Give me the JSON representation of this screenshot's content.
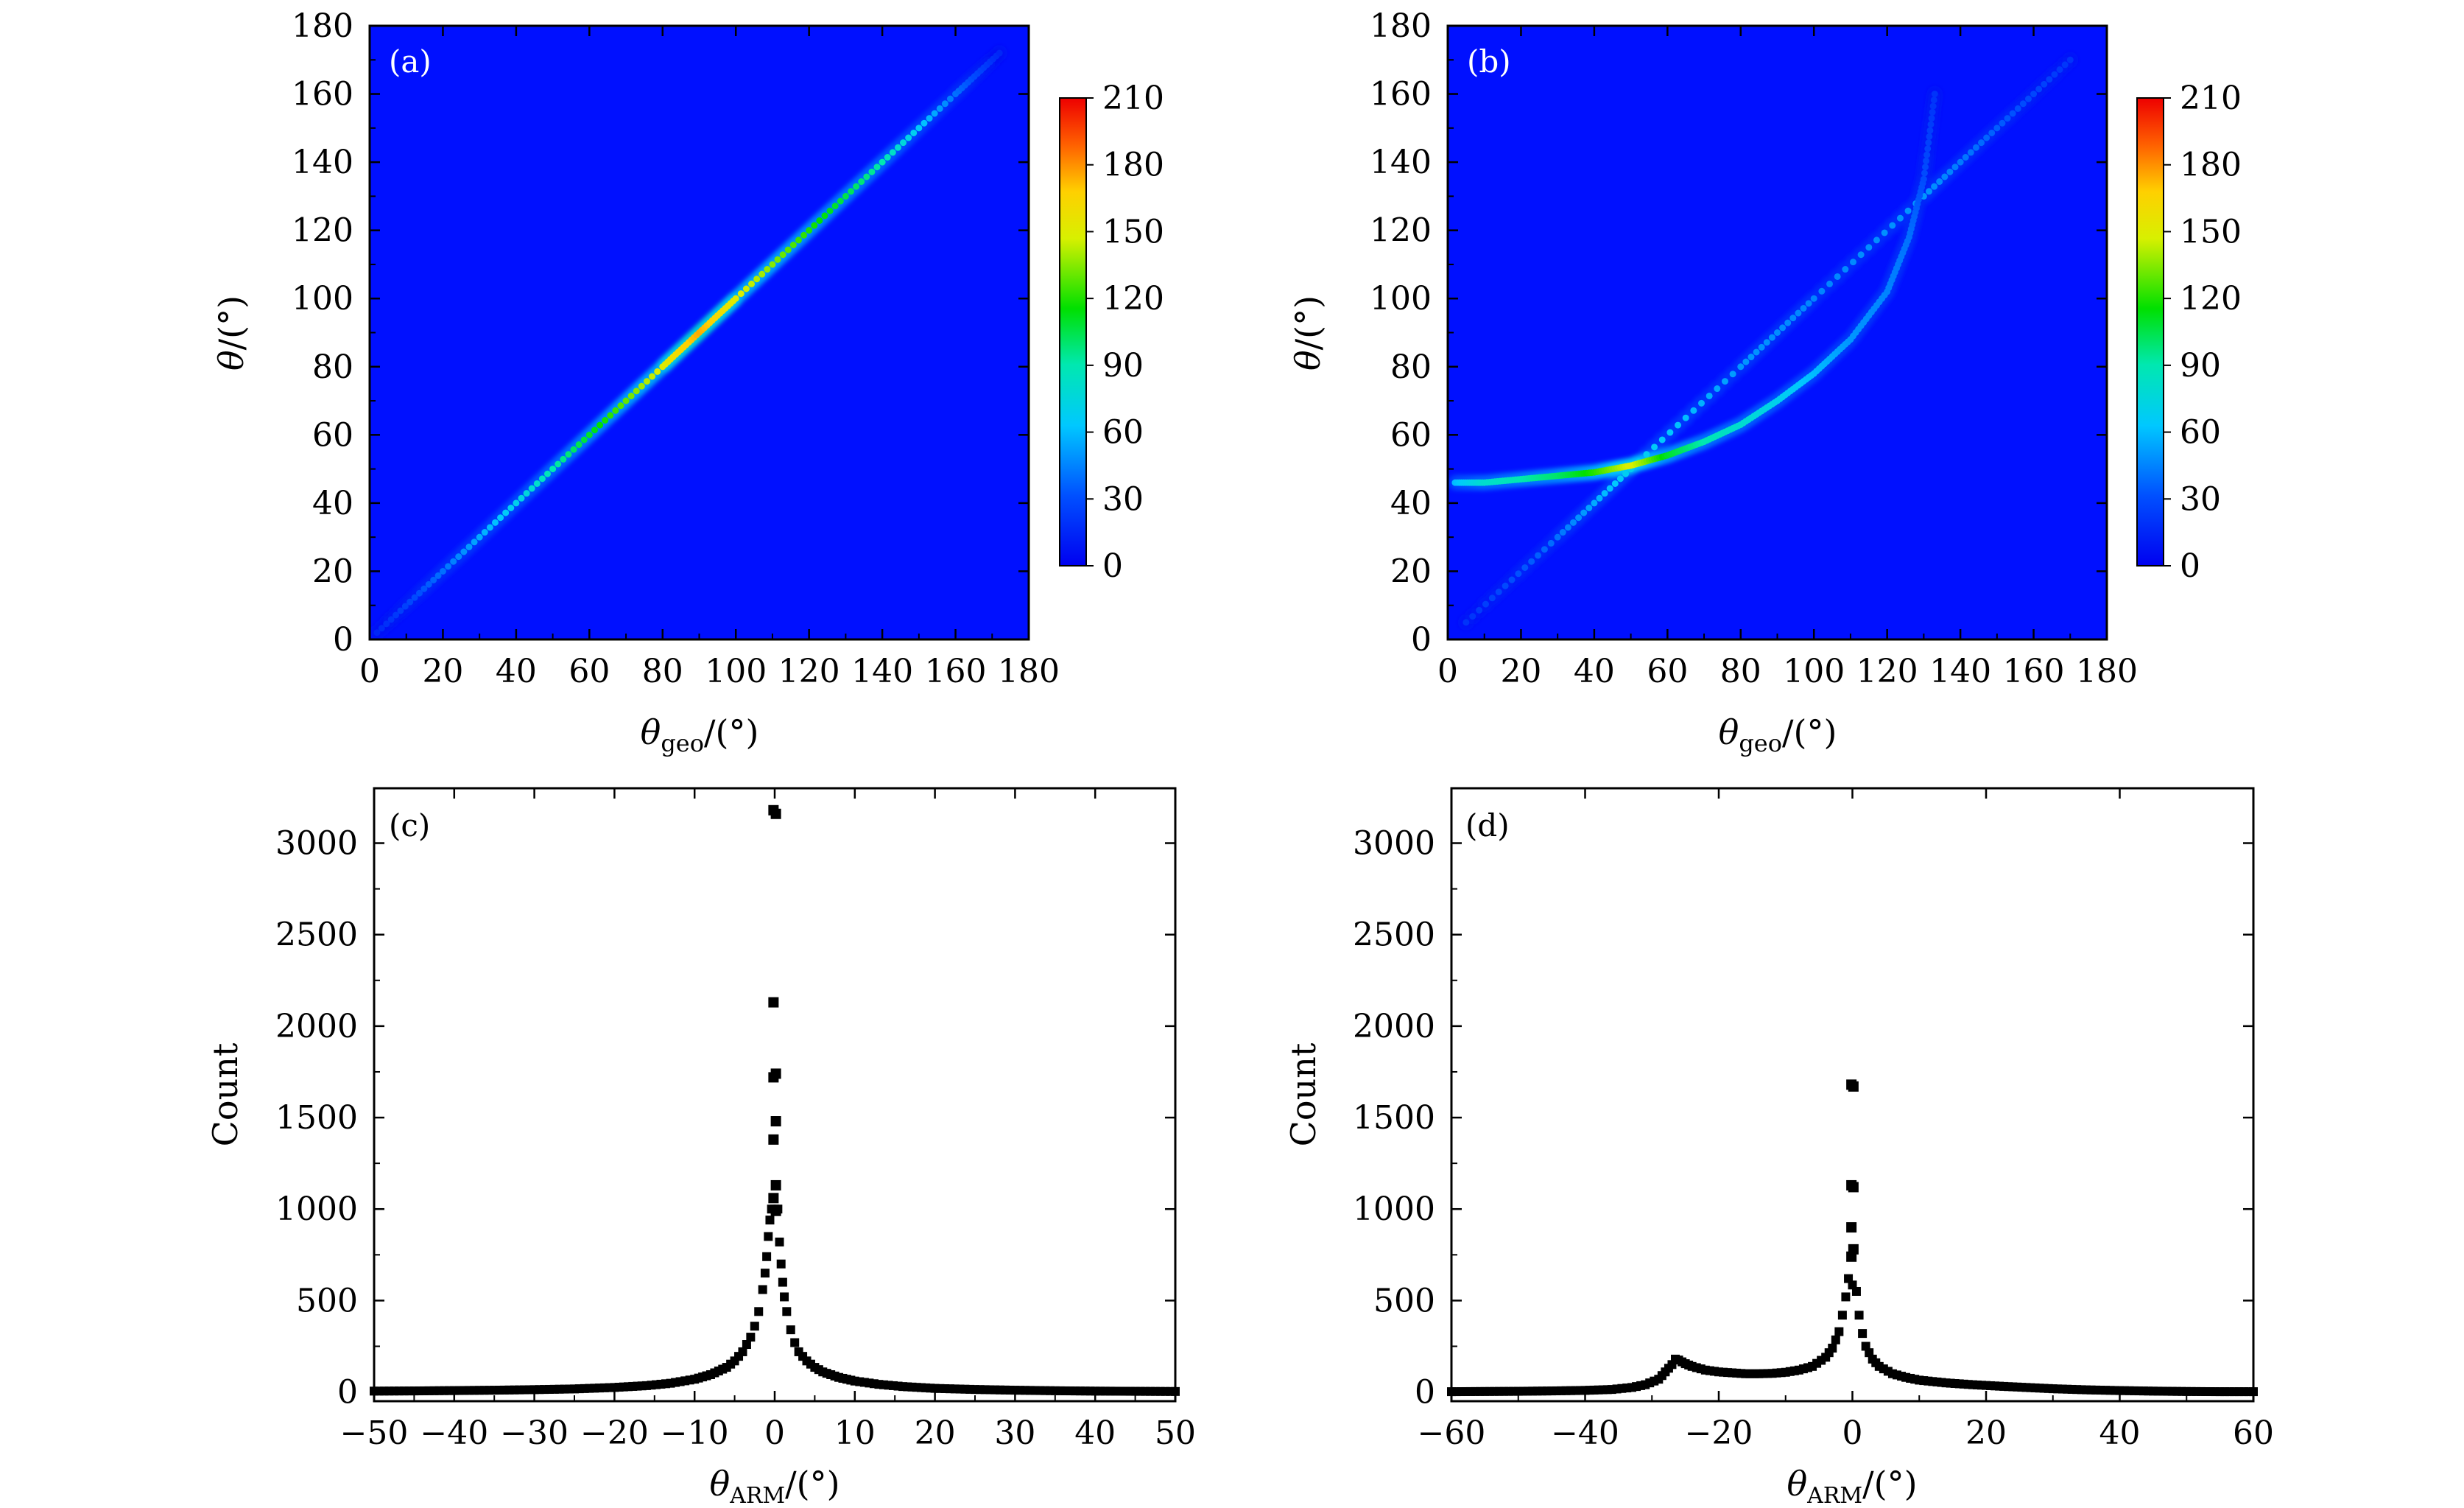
{
  "chart_data": [
    {
      "panel": "(a)",
      "type": "heatmap",
      "xlabel": "θgeo/(°)",
      "ylabel": "θ/(°)",
      "xlim": [
        0,
        180
      ],
      "ylim": [
        0,
        180
      ],
      "xticks": [
        0,
        20,
        40,
        60,
        80,
        100,
        120,
        140,
        160,
        180
      ],
      "yticks": [
        0,
        20,
        40,
        60,
        80,
        100,
        120,
        140,
        160,
        180
      ],
      "colorbar": {
        "min": 0,
        "max": 210,
        "ticks": [
          0,
          30,
          60,
          90,
          120,
          150,
          180,
          210
        ]
      },
      "features": [
        {
          "name": "diagonal",
          "points": [
            [
              2,
              2
            ],
            [
              20,
              20
            ],
            [
              40,
              40
            ],
            [
              60,
              60
            ],
            [
              80,
              80
            ],
            [
              90,
              90
            ],
            [
              100,
              100
            ],
            [
              120,
              120
            ],
            [
              140,
              140
            ],
            [
              160,
              160
            ],
            [
              172,
              172
            ]
          ],
          "intensity": [
            15,
            40,
            70,
            110,
            150,
            175,
            150,
            120,
            90,
            40,
            15
          ]
        }
      ]
    },
    {
      "panel": "(b)",
      "type": "heatmap",
      "xlabel": "θgeo/(°)",
      "ylabel": "θ/(°)",
      "xlim": [
        0,
        180
      ],
      "ylim": [
        0,
        180
      ],
      "xticks": [
        0,
        20,
        40,
        60,
        80,
        100,
        120,
        140,
        160,
        180
      ],
      "yticks": [
        0,
        20,
        40,
        60,
        80,
        100,
        120,
        140,
        160,
        180
      ],
      "colorbar": {
        "min": 0,
        "max": 210,
        "ticks": [
          0,
          30,
          60,
          90,
          120,
          150,
          180,
          210
        ]
      },
      "features": [
        {
          "name": "diagonal",
          "points": [
            [
              5,
              5
            ],
            [
              30,
              30
            ],
            [
              50,
              50
            ],
            [
              80,
              80
            ],
            [
              100,
              100
            ],
            [
              130,
              130
            ],
            [
              150,
              150
            ],
            [
              170,
              170
            ]
          ],
          "intensity": [
            20,
            40,
            70,
            50,
            45,
            50,
            35,
            20
          ]
        },
        {
          "name": "curve",
          "points": [
            [
              2,
              46
            ],
            [
              10,
              46
            ],
            [
              20,
              47
            ],
            [
              30,
              48
            ],
            [
              40,
              49
            ],
            [
              50,
              51
            ],
            [
              60,
              54
            ],
            [
              70,
              58
            ],
            [
              80,
              63
            ],
            [
              90,
              70
            ],
            [
              100,
              78
            ],
            [
              110,
              88
            ],
            [
              120,
              102
            ],
            [
              126,
              118
            ],
            [
              130,
              135
            ],
            [
              133,
              160
            ]
          ],
          "intensity": [
            60,
            80,
            90,
            100,
            120,
            150,
            110,
            90,
            80,
            70,
            60,
            50,
            45,
            40,
            30,
            20
          ]
        }
      ]
    },
    {
      "panel": "(c)",
      "type": "scatter",
      "xlabel": "θARM/(°)",
      "ylabel": "Count",
      "xlim": [
        -50,
        50
      ],
      "ylim": [
        -50,
        3300
      ],
      "xticks": [
        -50,
        -40,
        -30,
        -20,
        -10,
        0,
        10,
        20,
        30,
        40,
        50
      ],
      "xtick_labels": [
        "−50",
        "−40",
        "−30",
        "−20",
        "−10",
        "0",
        "10",
        "20",
        "30",
        "40",
        "50"
      ],
      "yticks": [
        0,
        500,
        1000,
        1500,
        2000,
        2500,
        3000
      ],
      "peaks": [
        3180,
        3160,
        2130,
        1740,
        1720,
        1480,
        1380,
        1130,
        1060,
        990
      ],
      "x": [
        -50,
        -45,
        -40,
        -35,
        -30,
        -25,
        -20,
        -16,
        -13,
        -10,
        -8,
        -6,
        -5,
        -4,
        -3,
        -2.5,
        -2,
        -1.5,
        -1.2,
        -1,
        -0.8,
        -0.6,
        -0.4,
        0.4,
        0.6,
        0.8,
        1,
        1.2,
        1.5,
        2,
        2.5,
        3,
        4,
        5,
        6,
        8,
        10,
        13,
        16,
        20,
        25,
        30,
        35,
        40,
        45,
        50
      ],
      "y": [
        5,
        6,
        8,
        10,
        13,
        17,
        25,
        35,
        48,
        70,
        95,
        135,
        170,
        220,
        300,
        360,
        440,
        560,
        650,
        740,
        850,
        940,
        1000,
        1000,
        820,
        700,
        600,
        520,
        440,
        340,
        270,
        220,
        170,
        135,
        110,
        80,
        60,
        42,
        30,
        20,
        14,
        10,
        7,
        5,
        4,
        3
      ]
    },
    {
      "panel": "(d)",
      "type": "scatter",
      "xlabel": "θARM/(°)",
      "ylabel": "Count",
      "xlim": [
        -60,
        60
      ],
      "ylim": [
        -50,
        3300
      ],
      "xticks": [
        -60,
        -40,
        -20,
        0,
        20,
        40,
        60
      ],
      "xtick_labels": [
        "−60",
        "−40",
        "−20",
        "0",
        "20",
        "40",
        "60"
      ],
      "yticks": [
        0,
        500,
        1000,
        1500,
        2000,
        2500,
        3000
      ],
      "peaks": [
        1680,
        1670,
        1130,
        1120,
        900,
        780,
        740
      ],
      "x": [
        -60,
        -55,
        -50,
        -45,
        -40,
        -36,
        -33,
        -31,
        -29,
        -28,
        -27,
        -26.5,
        -26,
        -25,
        -24,
        -22,
        -20,
        -18,
        -16,
        -14,
        -12,
        -10,
        -8,
        -6,
        -4,
        -3,
        -2,
        -1.5,
        -1,
        -0.6,
        0.6,
        1,
        1.5,
        2,
        3,
        4,
        6,
        8,
        10,
        14,
        18,
        22,
        26,
        30,
        35,
        40,
        45,
        50,
        55,
        60
      ],
      "y": [
        2,
        3,
        4,
        6,
        9,
        14,
        25,
        40,
        70,
        110,
        150,
        180,
        175,
        155,
        140,
        120,
        110,
        105,
        100,
        100,
        102,
        108,
        120,
        140,
        190,
        240,
        330,
        420,
        520,
        620,
        550,
        420,
        320,
        250,
        180,
        140,
        100,
        80,
        65,
        50,
        40,
        32,
        25,
        18,
        12,
        8,
        5,
        3,
        2,
        2
      ]
    }
  ]
}
